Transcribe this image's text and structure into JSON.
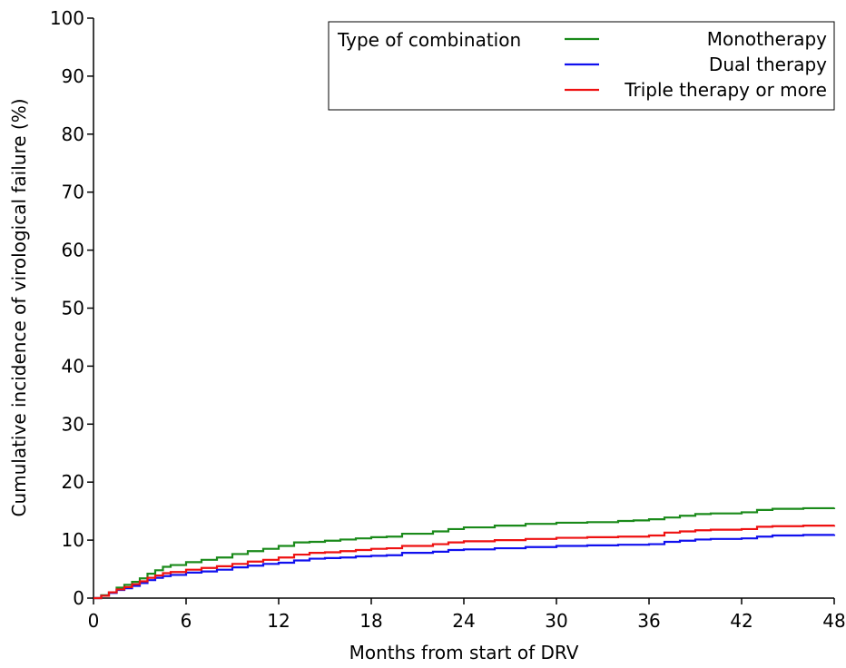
{
  "chart_data": {
    "type": "line",
    "title": "",
    "xlabel": "Months from start of DRV",
    "ylabel": "Cumulative incidence of virological failure (%)",
    "xlim": [
      0,
      48
    ],
    "ylim": [
      0,
      100
    ],
    "x_ticks": [
      0,
      6,
      12,
      18,
      24,
      30,
      36,
      42,
      48
    ],
    "y_ticks": [
      0,
      10,
      20,
      30,
      40,
      50,
      60,
      70,
      80,
      90,
      100
    ],
    "grid": false,
    "legend": {
      "placement": "top-right",
      "title": "Type of combination"
    },
    "series": [
      {
        "name": "Monotherapy",
        "color": "#1a8a1a",
        "step": true,
        "points": [
          [
            0,
            0
          ],
          [
            0.5,
            0.5
          ],
          [
            1,
            1
          ],
          [
            1.5,
            1.8
          ],
          [
            2,
            2.3
          ],
          [
            2.5,
            2.8
          ],
          [
            3,
            3.4
          ],
          [
            3.5,
            4.2
          ],
          [
            4,
            4.8
          ],
          [
            4.5,
            5.4
          ],
          [
            5,
            5.7
          ],
          [
            6,
            6.2
          ],
          [
            7,
            6.6
          ],
          [
            8,
            7.0
          ],
          [
            9,
            7.6
          ],
          [
            10,
            8.1
          ],
          [
            11,
            8.5
          ],
          [
            12,
            9.0
          ],
          [
            13,
            9.6
          ],
          [
            14,
            9.7
          ],
          [
            15,
            9.9
          ],
          [
            16,
            10.1
          ],
          [
            17,
            10.3
          ],
          [
            18,
            10.5
          ],
          [
            19,
            10.6
          ],
          [
            20,
            11.1
          ],
          [
            22,
            11.5
          ],
          [
            23,
            11.9
          ],
          [
            24,
            12.2
          ],
          [
            26,
            12.5
          ],
          [
            28,
            12.8
          ],
          [
            30,
            13.0
          ],
          [
            32,
            13.1
          ],
          [
            34,
            13.3
          ],
          [
            35,
            13.4
          ],
          [
            36,
            13.6
          ],
          [
            37,
            13.9
          ],
          [
            38,
            14.2
          ],
          [
            39,
            14.5
          ],
          [
            40,
            14.6
          ],
          [
            42,
            14.8
          ],
          [
            43,
            15.2
          ],
          [
            44,
            15.4
          ],
          [
            46,
            15.5
          ],
          [
            48,
            15.6
          ]
        ]
      },
      {
        "name": "Dual therapy",
        "color": "#1010ee",
        "step": true,
        "points": [
          [
            0,
            0
          ],
          [
            0.5,
            0.4
          ],
          [
            1,
            0.9
          ],
          [
            1.5,
            1.4
          ],
          [
            2,
            1.7
          ],
          [
            2.5,
            2.1
          ],
          [
            3,
            2.6
          ],
          [
            3.5,
            3.1
          ],
          [
            4,
            3.5
          ],
          [
            4.5,
            3.8
          ],
          [
            5,
            4.0
          ],
          [
            6,
            4.4
          ],
          [
            7,
            4.6
          ],
          [
            8,
            4.9
          ],
          [
            9,
            5.3
          ],
          [
            10,
            5.6
          ],
          [
            11,
            5.9
          ],
          [
            12,
            6.1
          ],
          [
            13,
            6.5
          ],
          [
            14,
            6.8
          ],
          [
            15,
            6.9
          ],
          [
            16,
            7.0
          ],
          [
            17,
            7.2
          ],
          [
            18,
            7.3
          ],
          [
            19,
            7.4
          ],
          [
            20,
            7.8
          ],
          [
            22,
            8.0
          ],
          [
            23,
            8.3
          ],
          [
            24,
            8.4
          ],
          [
            26,
            8.6
          ],
          [
            28,
            8.8
          ],
          [
            30,
            9.0
          ],
          [
            32,
            9.1
          ],
          [
            34,
            9.2
          ],
          [
            36,
            9.3
          ],
          [
            37,
            9.7
          ],
          [
            38,
            9.9
          ],
          [
            39,
            10.1
          ],
          [
            40,
            10.2
          ],
          [
            42,
            10.3
          ],
          [
            43,
            10.6
          ],
          [
            44,
            10.8
          ],
          [
            46,
            10.9
          ],
          [
            48,
            11.0
          ]
        ]
      },
      {
        "name": "Triple therapy or more",
        "color": "#ee1111",
        "step": true,
        "points": [
          [
            0,
            0
          ],
          [
            0.5,
            0.4
          ],
          [
            1,
            1.0
          ],
          [
            1.5,
            1.5
          ],
          [
            2,
            1.9
          ],
          [
            2.5,
            2.4
          ],
          [
            3,
            2.9
          ],
          [
            3.5,
            3.5
          ],
          [
            4,
            3.9
          ],
          [
            4.5,
            4.3
          ],
          [
            5,
            4.5
          ],
          [
            6,
            4.9
          ],
          [
            7,
            5.2
          ],
          [
            8,
            5.5
          ],
          [
            9,
            5.9
          ],
          [
            10,
            6.3
          ],
          [
            11,
            6.6
          ],
          [
            12,
            7.0
          ],
          [
            13,
            7.5
          ],
          [
            14,
            7.8
          ],
          [
            15,
            7.9
          ],
          [
            16,
            8.1
          ],
          [
            17,
            8.3
          ],
          [
            18,
            8.5
          ],
          [
            19,
            8.6
          ],
          [
            20,
            9.0
          ],
          [
            22,
            9.3
          ],
          [
            23,
            9.6
          ],
          [
            24,
            9.8
          ],
          [
            26,
            10.0
          ],
          [
            28,
            10.2
          ],
          [
            30,
            10.4
          ],
          [
            32,
            10.5
          ],
          [
            34,
            10.6
          ],
          [
            36,
            10.8
          ],
          [
            37,
            11.3
          ],
          [
            38,
            11.5
          ],
          [
            39,
            11.7
          ],
          [
            40,
            11.8
          ],
          [
            42,
            11.9
          ],
          [
            43,
            12.3
          ],
          [
            44,
            12.4
          ],
          [
            46,
            12.5
          ],
          [
            48,
            12.6
          ]
        ]
      }
    ]
  }
}
